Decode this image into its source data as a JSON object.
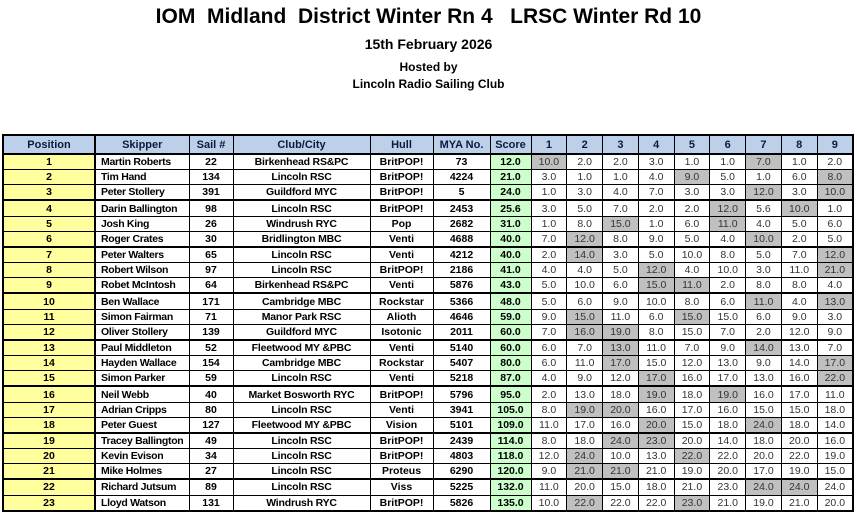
{
  "page": {
    "title": "IOM  Midland  District Winter Rn 4   LRSC Winter Rd 10",
    "date": "15th February 2026",
    "hosted_by": "Hosted by",
    "host_club": "Lincoln Radio Sailing Club"
  },
  "colors": {
    "header_bg": "#BDD0E9",
    "position_bg": "#FFFF9E",
    "score_bg": "#CCFFCC",
    "discard_bg": "#C0C0C0",
    "border": "#000000"
  },
  "results": {
    "columns": [
      "Position",
      "Skipper",
      "Sail #",
      "Club/City",
      "Hull",
      "MYA No.",
      "Score",
      "1",
      "2",
      "3",
      "4",
      "5",
      "6",
      "7",
      "8",
      "9"
    ],
    "rows": [
      {
        "position": "1",
        "skipper": "Martin Roberts",
        "sail": "22",
        "club": "Birkenhead RS&PC",
        "hull": "BritPOP!",
        "mya": "73",
        "score": "12.0",
        "races": [
          "10.0",
          "2.0",
          "2.0",
          "3.0",
          "1.0",
          "1.0",
          "7.0",
          "1.0",
          "2.0"
        ],
        "discards": [
          1,
          7
        ]
      },
      {
        "position": "2",
        "skipper": "Tim Hand",
        "sail": "134",
        "club": "Lincoln RSC",
        "hull": "BritPOP!",
        "mya": "4224",
        "score": "21.0",
        "races": [
          "3.0",
          "1.0",
          "1.0",
          "4.0",
          "9.0",
          "5.0",
          "1.0",
          "6.0",
          "8.0"
        ],
        "discards": [
          5,
          9
        ]
      },
      {
        "position": "3",
        "skipper": "Peter Stollery",
        "sail": "391",
        "club": "Guildford MYC",
        "hull": "BritPOP!",
        "mya": "5",
        "score": "24.0",
        "races": [
          "1.0",
          "3.0",
          "4.0",
          "7.0",
          "3.0",
          "3.0",
          "12.0",
          "3.0",
          "10.0"
        ],
        "discards": [
          7,
          9
        ]
      },
      {
        "position": "4",
        "skipper": "Darin Ballington",
        "sail": "98",
        "club": "Lincoln RSC",
        "hull": "BritPOP!",
        "mya": "2453",
        "score": "25.6",
        "races": [
          "3.0",
          "5.0",
          "7.0",
          "2.0",
          "2.0",
          "12.0",
          "5.6",
          "10.0",
          "1.0"
        ],
        "discards": [
          6,
          8
        ]
      },
      {
        "position": "5",
        "skipper": "Josh King",
        "sail": "26",
        "club": "Windrush RYC",
        "hull": "Pop",
        "mya": "2682",
        "score": "31.0",
        "races": [
          "1.0",
          "8.0",
          "15.0",
          "1.0",
          "6.0",
          "11.0",
          "4.0",
          "5.0",
          "6.0"
        ],
        "discards": [
          3,
          6
        ]
      },
      {
        "position": "6",
        "skipper": "Roger Crates",
        "sail": "30",
        "club": "Bridlington MBC",
        "hull": "Venti",
        "mya": "4688",
        "score": "40.0",
        "races": [
          "7.0",
          "12.0",
          "8.0",
          "9.0",
          "5.0",
          "4.0",
          "10.0",
          "2.0",
          "5.0"
        ],
        "discards": [
          2,
          7
        ]
      },
      {
        "position": "7",
        "skipper": "Peter Walters",
        "sail": "65",
        "club": "Lincoln RSC",
        "hull": "Venti",
        "mya": "4212",
        "score": "40.0",
        "races": [
          "2.0",
          "14.0",
          "3.0",
          "5.0",
          "10.0",
          "8.0",
          "5.0",
          "7.0",
          "12.0"
        ],
        "discards": [
          2,
          9
        ]
      },
      {
        "position": "8",
        "skipper": "Robert Wilson",
        "sail": "97",
        "club": "Lincoln RSC",
        "hull": "BritPOP!",
        "mya": "2186",
        "score": "41.0",
        "races": [
          "4.0",
          "4.0",
          "5.0",
          "12.0",
          "4.0",
          "10.0",
          "3.0",
          "11.0",
          "21.0"
        ],
        "discards": [
          4,
          9
        ]
      },
      {
        "position": "9",
        "skipper": "Robet McIntosh",
        "sail": "64",
        "club": "Birkenhead RS&PC",
        "hull": "Venti",
        "mya": "5876",
        "score": "43.0",
        "races": [
          "5.0",
          "10.0",
          "6.0",
          "15.0",
          "11.0",
          "2.0",
          "8.0",
          "8.0",
          "4.0"
        ],
        "discards": [
          4,
          5
        ]
      },
      {
        "position": "10",
        "skipper": "Ben Wallace",
        "sail": "171",
        "club": "Cambridge MBC",
        "hull": "Rockstar",
        "mya": "5366",
        "score": "48.0",
        "races": [
          "5.0",
          "6.0",
          "9.0",
          "10.0",
          "8.0",
          "6.0",
          "11.0",
          "4.0",
          "13.0"
        ],
        "discards": [
          7,
          9
        ]
      },
      {
        "position": "11",
        "skipper": "Simon Fairman",
        "sail": "71",
        "club": "Manor Park RSC",
        "hull": "Alioth",
        "mya": "4646",
        "score": "59.0",
        "races": [
          "9.0",
          "15.0",
          "11.0",
          "6.0",
          "15.0",
          "15.0",
          "6.0",
          "9.0",
          "3.0"
        ],
        "discards": [
          2,
          5
        ]
      },
      {
        "position": "12",
        "skipper": "Oliver Stollery",
        "sail": "139",
        "club": "Guildford MYC",
        "hull": "Isotonic",
        "mya": "2011",
        "score": "60.0",
        "races": [
          "7.0",
          "16.0",
          "19.0",
          "8.0",
          "15.0",
          "7.0",
          "2.0",
          "12.0",
          "9.0"
        ],
        "discards": [
          2,
          3
        ]
      },
      {
        "position": "13",
        "skipper": "Paul Middleton",
        "sail": "52",
        "club": "Fleetwood MY &PBC",
        "hull": "Venti",
        "mya": "5140",
        "score": "60.0",
        "races": [
          "6.0",
          "7.0",
          "13.0",
          "11.0",
          "7.0",
          "9.0",
          "14.0",
          "13.0",
          "7.0"
        ],
        "discards": [
          3,
          7
        ]
      },
      {
        "position": "14",
        "skipper": "Hayden Wallace",
        "sail": "154",
        "club": "Cambridge MBC",
        "hull": "Rockstar",
        "mya": "5407",
        "score": "80.0",
        "races": [
          "6.0",
          "11.0",
          "17.0",
          "15.0",
          "12.0",
          "13.0",
          "9.0",
          "14.0",
          "17.0"
        ],
        "discards": [
          3,
          9
        ]
      },
      {
        "position": "15",
        "skipper": "Simon Parker",
        "sail": "59",
        "club": "Lincoln RSC",
        "hull": "Venti",
        "mya": "5218",
        "score": "87.0",
        "races": [
          "4.0",
          "9.0",
          "12.0",
          "17.0",
          "16.0",
          "17.0",
          "13.0",
          "16.0",
          "22.0"
        ],
        "discards": [
          4,
          9
        ]
      },
      {
        "position": "16",
        "skipper": "Neil Webb",
        "sail": "40",
        "club": "Market Bosworth RYC",
        "hull": "BritPOP!",
        "mya": "5796",
        "score": "95.0",
        "races": [
          "2.0",
          "13.0",
          "18.0",
          "19.0",
          "18.0",
          "19.0",
          "16.0",
          "17.0",
          "11.0"
        ],
        "discards": [
          4,
          6
        ]
      },
      {
        "position": "17",
        "skipper": "Adrian Cripps",
        "sail": "80",
        "club": "Lincoln RSC",
        "hull": "Venti",
        "mya": "3941",
        "score": "105.0",
        "races": [
          "8.0",
          "19.0",
          "20.0",
          "16.0",
          "17.0",
          "16.0",
          "15.0",
          "15.0",
          "18.0"
        ],
        "discards": [
          2,
          3
        ]
      },
      {
        "position": "18",
        "skipper": "Peter Guest",
        "sail": "127",
        "club": "Fleetwood MY &PBC",
        "hull": "Vision",
        "mya": "5101",
        "score": "109.0",
        "races": [
          "11.0",
          "17.0",
          "16.0",
          "20.0",
          "15.0",
          "18.0",
          "24.0",
          "18.0",
          "14.0"
        ],
        "discards": [
          4,
          7
        ]
      },
      {
        "position": "19",
        "skipper": "Tracey Ballington",
        "sail": "49",
        "club": "Lincoln RSC",
        "hull": "BritPOP!",
        "mya": "2439",
        "score": "114.0",
        "races": [
          "8.0",
          "18.0",
          "24.0",
          "23.0",
          "20.0",
          "14.0",
          "18.0",
          "20.0",
          "16.0"
        ],
        "discards": [
          3,
          4
        ]
      },
      {
        "position": "20",
        "skipper": "Kevin Evison",
        "sail": "34",
        "club": "Lincoln RSC",
        "hull": "BritPOP!",
        "mya": "4803",
        "score": "118.0",
        "races": [
          "12.0",
          "24.0",
          "10.0",
          "13.0",
          "22.0",
          "22.0",
          "20.0",
          "22.0",
          "19.0"
        ],
        "discards": [
          2,
          5
        ]
      },
      {
        "position": "21",
        "skipper": "Mike Holmes",
        "sail": "27",
        "club": "Lincoln RSC",
        "hull": "Proteus",
        "mya": "6290",
        "score": "120.0",
        "races": [
          "9.0",
          "21.0",
          "21.0",
          "21.0",
          "19.0",
          "20.0",
          "17.0",
          "19.0",
          "15.0"
        ],
        "discards": [
          2,
          3
        ]
      },
      {
        "position": "22",
        "skipper": "Richard Jutsum",
        "sail": "89",
        "club": "Lincoln RSC",
        "hull": "Viss",
        "mya": "5225",
        "score": "132.0",
        "races": [
          "11.0",
          "20.0",
          "15.0",
          "18.0",
          "21.0",
          "23.0",
          "24.0",
          "24.0",
          "24.0"
        ],
        "discards": [
          7,
          8
        ]
      },
      {
        "position": "23",
        "skipper": "Lloyd Watson",
        "sail": "131",
        "club": "Windrush RYC",
        "hull": "BritPOP!",
        "mya": "5826",
        "score": "135.0",
        "races": [
          "10.0",
          "22.0",
          "22.0",
          "22.0",
          "23.0",
          "21.0",
          "19.0",
          "21.0",
          "20.0"
        ],
        "discards": [
          2,
          5
        ]
      }
    ]
  }
}
